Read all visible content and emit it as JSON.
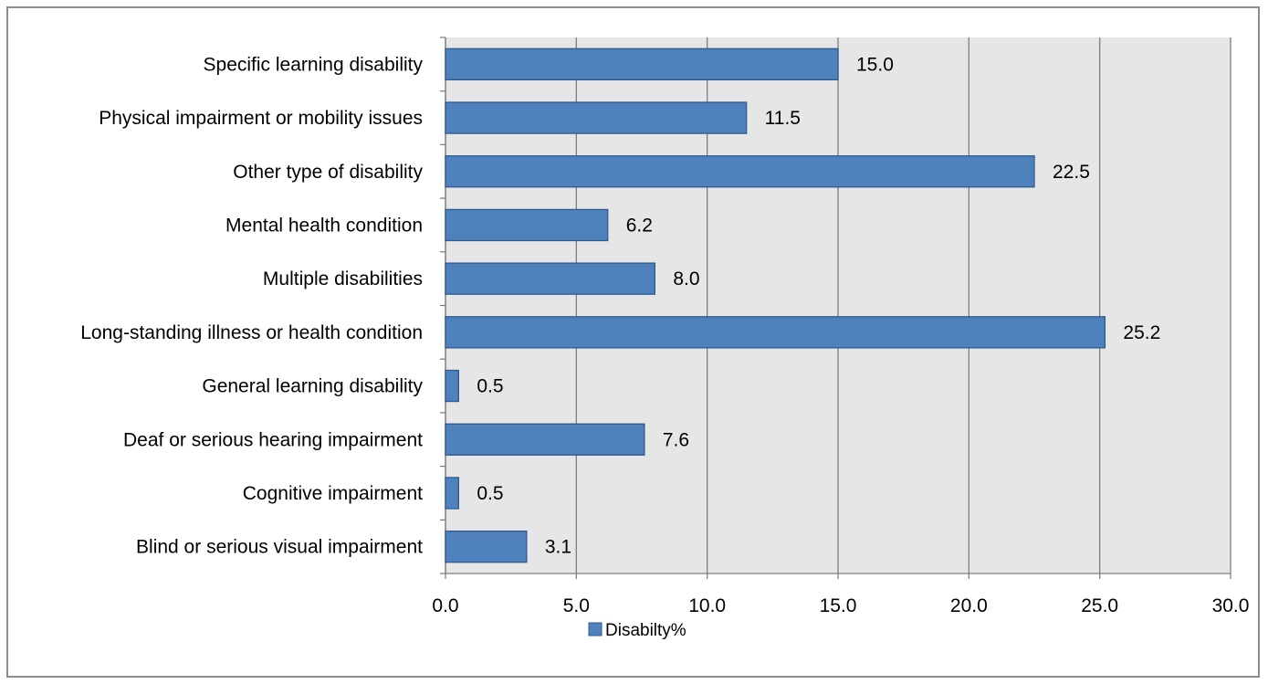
{
  "chart_data": {
    "type": "bar",
    "orientation": "horizontal",
    "categories": [
      "Specific learning disability",
      "Physical impairment or mobility issues",
      "Other type of disability",
      "Mental health condition",
      "Multiple disabilities",
      "Long-standing illness or health condition",
      "General learning disability",
      "Deaf or serious hearing impairment",
      "Cognitive impairment",
      "Blind or serious visual impairment"
    ],
    "series": [
      {
        "name": "Disabilty%",
        "values": [
          15.0,
          11.5,
          22.5,
          6.2,
          8.0,
          25.2,
          0.5,
          7.6,
          0.5,
          3.1
        ],
        "labels": [
          "15.0",
          "11.5",
          "22.5",
          "6.2",
          "8.0",
          "25.2",
          "0.5",
          "7.6",
          "0.5",
          "3.1"
        ]
      }
    ],
    "xlim": [
      0,
      30
    ],
    "xticks": [
      0,
      5,
      10,
      15,
      20,
      25,
      30
    ],
    "xtick_labels": [
      "0.0",
      "5.0",
      "10.0",
      "15.0",
      "20.0",
      "25.0",
      "30.0"
    ],
    "title": "",
    "xlabel": "",
    "ylabel": "",
    "grid": "vertical",
    "legend_position": "bottom",
    "colors": {
      "bar_fill": "#4f81bd",
      "bar_stroke": "#2f5a8f",
      "plot_background": "#e6e6e6",
      "gridline": "#7f7f7f",
      "frame_border": "#8c8c8c"
    }
  }
}
